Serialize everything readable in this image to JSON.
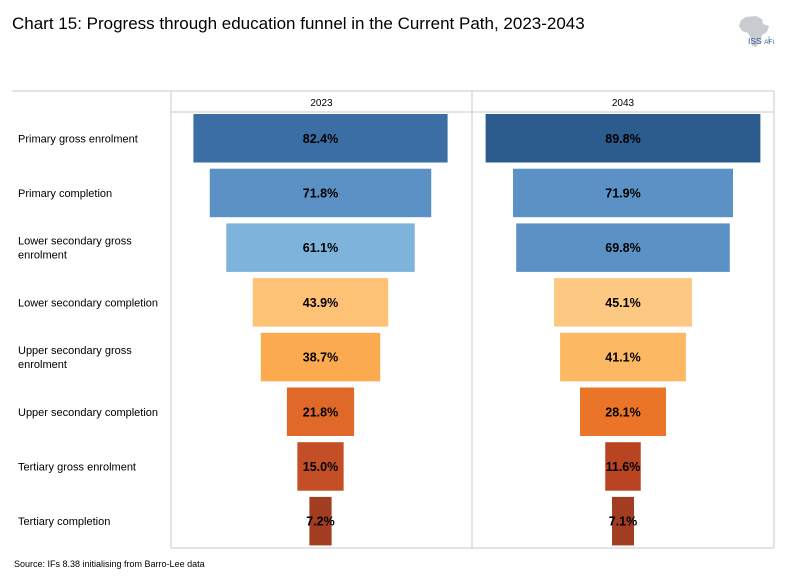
{
  "title": "Chart 15: Progress through education funnel in the Current Path, 2023-2043",
  "logo": {
    "main": "ISS",
    "sub": "AFI"
  },
  "source": "Source: IFs 8.38 initialising from Barro-Lee data",
  "chart_data": {
    "type": "bar",
    "orientation": "horizontal-funnel",
    "categories": [
      [
        "Primary gross enrolment"
      ],
      [
        "Primary completion"
      ],
      [
        "Lower secondary gross",
        "enrolment"
      ],
      [
        "Lower secondary completion"
      ],
      [
        "Upper secondary gross",
        "enrolment"
      ],
      [
        "Upper secondary completion"
      ],
      [
        "Tertiary gross enrolment"
      ],
      [
        "Tertiary completion"
      ]
    ],
    "series": [
      {
        "name": "2023",
        "values": [
          82.4,
          71.8,
          61.1,
          43.9,
          38.7,
          21.8,
          15.0,
          7.2
        ],
        "labels": [
          "82.4%",
          "71.8%",
          "61.1%",
          "43.9%",
          "38.7%",
          "21.8%",
          "15.0%",
          "7.2%"
        ],
        "colors": [
          "#3a6ea5",
          "#5b91c4",
          "#7eb3db",
          "#fdc275",
          "#fbaa4f",
          "#e0692a",
          "#c44f26",
          "#a23d22"
        ]
      },
      {
        "name": "2043",
        "values": [
          89.8,
          71.9,
          69.8,
          45.1,
          41.1,
          28.1,
          11.6,
          7.1
        ],
        "labels": [
          "89.8%",
          "71.9%",
          "69.8%",
          "45.1%",
          "41.1%",
          "28.1%",
          "11.6%",
          "7.1%"
        ],
        "colors": [
          "#2c5b8e",
          "#5b91c4",
          "#5b91c4",
          "#fdc882",
          "#fcb862",
          "#ea7428",
          "#b84422",
          "#a23d22"
        ]
      }
    ],
    "grid": false,
    "legend": "none"
  }
}
